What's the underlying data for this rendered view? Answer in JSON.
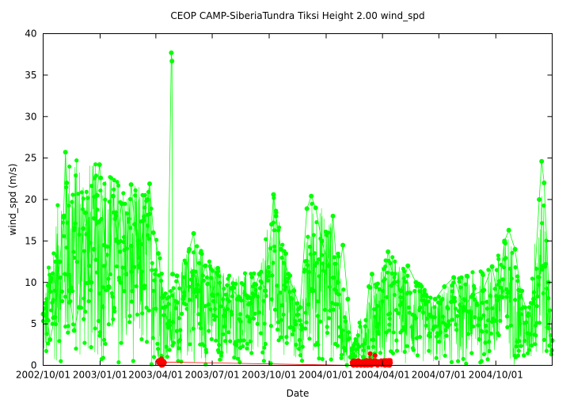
{
  "chart_data": {
    "type": "scatter",
    "title": "CEOP CAMP-SiberiaTundra Tiksi Height 2.00 wind_spd",
    "xlabel": "Date",
    "ylabel": "wind_spd (m/s)",
    "ylim": [
      0,
      40
    ],
    "xlim": [
      "2002-10-01",
      "2004-12-31"
    ],
    "yticks": [
      0,
      5,
      10,
      15,
      20,
      25,
      30,
      35,
      40
    ],
    "xticks": [
      {
        "date": "2002-10-01",
        "label": "2002/10/01"
      },
      {
        "date": "2003-01-01",
        "label": "2003/01/01"
      },
      {
        "date": "2003-04-01",
        "label": "2003/04/01"
      },
      {
        "date": "2003-07-01",
        "label": "2003/07/01"
      },
      {
        "date": "2003-10-01",
        "label": "2003/10/01"
      },
      {
        "date": "2004-01-01",
        "label": "2004/01/01"
      },
      {
        "date": "2004-04-01",
        "label": "2004/04/01"
      },
      {
        "date": "2004-07-01",
        "label": "2004/07/01"
      },
      {
        "date": "2004-10-01",
        "label": "2004/10/01"
      }
    ],
    "grid": false,
    "legend": "none",
    "series": [
      {
        "color": "#00ff00",
        "connected": true,
        "points": [
          [
            "2002-10-01",
            6.2
          ],
          [
            "2002-10-05",
            7.5
          ],
          [
            "2002-10-12",
            3.1
          ],
          [
            "2002-10-20",
            5.8
          ],
          [
            "2002-10-28",
            12.5
          ],
          [
            "2002-11-03",
            18.0
          ],
          [
            "2002-11-06",
            25.7
          ],
          [
            "2002-11-08",
            22.0
          ],
          [
            "2002-11-12",
            9.0
          ],
          [
            "2002-11-20",
            4.2
          ],
          [
            "2002-11-28",
            7.0
          ],
          [
            "2002-12-05",
            16.5
          ],
          [
            "2002-12-08",
            18.4
          ],
          [
            "2002-12-15",
            10.0
          ],
          [
            "2002-12-22",
            14.0
          ],
          [
            "2002-12-27",
            20.5
          ],
          [
            "2002-12-31",
            24.2
          ],
          [
            "2003-01-02",
            22.6
          ],
          [
            "2003-01-08",
            14.5
          ],
          [
            "2003-01-15",
            9.5
          ],
          [
            "2003-01-22",
            20.4
          ],
          [
            "2003-01-28",
            15.0
          ],
          [
            "2003-02-05",
            19.5
          ],
          [
            "2003-02-12",
            11.0
          ],
          [
            "2003-02-20",
            21.8
          ],
          [
            "2003-02-26",
            17.0
          ],
          [
            "2003-03-05",
            12.0
          ],
          [
            "2003-03-12",
            17.5
          ],
          [
            "2003-03-18",
            20.0
          ],
          [
            "2003-03-22",
            21.9
          ],
          [
            "2003-03-28",
            16.0
          ],
          [
            "2003-04-05",
            13.5
          ],
          [
            "2003-04-12",
            8.2
          ],
          [
            "2003-04-20",
            5.0
          ],
          [
            "2003-04-26",
            37.7
          ],
          [
            "2003-04-27",
            36.7
          ],
          [
            "2003-04-28",
            11.0
          ],
          [
            "2003-05-05",
            10.8
          ],
          [
            "2003-05-15",
            8.0
          ],
          [
            "2003-05-25",
            14.0
          ],
          [
            "2003-06-01",
            15.9
          ],
          [
            "2003-06-10",
            9.0
          ],
          [
            "2003-06-20",
            12.0
          ],
          [
            "2003-07-01",
            8.5
          ],
          [
            "2003-07-10",
            11.7
          ],
          [
            "2003-07-20",
            6.0
          ],
          [
            "2003-08-01",
            9.3
          ],
          [
            "2003-08-15",
            8.0
          ],
          [
            "2003-09-01",
            7.5
          ],
          [
            "2003-09-15",
            11.0
          ],
          [
            "2003-09-25",
            9.0
          ],
          [
            "2003-10-05",
            17.0
          ],
          [
            "2003-10-08",
            20.6
          ],
          [
            "2003-10-12",
            18.0
          ],
          [
            "2003-10-20",
            14.0
          ],
          [
            "2003-11-01",
            11.0
          ],
          [
            "2003-11-10",
            9.0
          ],
          [
            "2003-11-20",
            7.0
          ],
          [
            "2003-12-01",
            18.9
          ],
          [
            "2003-12-08",
            20.4
          ],
          [
            "2003-12-15",
            19.0
          ],
          [
            "2003-12-25",
            15.0
          ],
          [
            "2004-01-05",
            12.0
          ],
          [
            "2004-01-12",
            18.0
          ],
          [
            "2004-01-20",
            10.0
          ],
          [
            "2004-01-28",
            14.5
          ],
          [
            "2004-02-05",
            8.0
          ],
          [
            "2004-02-12",
            2.0
          ],
          [
            "2004-03-01",
            1.0
          ],
          [
            "2004-03-10",
            9.5
          ],
          [
            "2004-03-15",
            11.0
          ],
          [
            "2004-03-25",
            4.0
          ],
          [
            "2004-04-10",
            13.7
          ],
          [
            "2004-04-20",
            10.0
          ],
          [
            "2004-05-01",
            9.0
          ],
          [
            "2004-05-12",
            12.0
          ],
          [
            "2004-05-25",
            10.0
          ],
          [
            "2004-06-10",
            8.5
          ],
          [
            "2004-06-25",
            8.0
          ],
          [
            "2004-07-10",
            9.5
          ],
          [
            "2004-07-25",
            10.6
          ],
          [
            "2004-08-10",
            7.0
          ],
          [
            "2004-08-25",
            8.5
          ],
          [
            "2004-09-10",
            9.0
          ],
          [
            "2004-09-25",
            11.9
          ],
          [
            "2004-10-05",
            8.0
          ],
          [
            "2004-10-15",
            15.0
          ],
          [
            "2004-10-22",
            16.3
          ],
          [
            "2004-11-01",
            14.0
          ],
          [
            "2004-11-10",
            9.0
          ],
          [
            "2004-11-22",
            6.0
          ],
          [
            "2004-12-01",
            8.0
          ],
          [
            "2004-12-10",
            20.0
          ],
          [
            "2004-12-14",
            24.6
          ],
          [
            "2004-12-18",
            22.0
          ],
          [
            "2004-12-25",
            10.0
          ],
          [
            "2004-12-31",
            3.0
          ]
        ],
        "band": {
          "description": "dense daily observations between the lower and upper envelope",
          "upper": [
            [
              "2002-10-01",
              7.5
            ],
            [
              "2002-11-06",
              25.7
            ],
            [
              "2002-12-31",
              24.2
            ],
            [
              "2003-02-20",
              21.8
            ],
            [
              "2003-03-22",
              21.9
            ],
            [
              "2003-04-20",
              8.2
            ],
            [
              "2003-06-01",
              15.9
            ],
            [
              "2003-07-10",
              11.7
            ],
            [
              "2003-09-15",
              11.0
            ],
            [
              "2003-10-08",
              20.6
            ],
            [
              "2003-11-20",
              7.0
            ],
            [
              "2003-12-08",
              20.4
            ],
            [
              "2004-01-12",
              18.0
            ],
            [
              "2004-02-12",
              2.0
            ],
            [
              "2004-03-10",
              9.5
            ],
            [
              "2004-04-10",
              13.7
            ],
            [
              "2004-06-25",
              8.0
            ],
            [
              "2004-07-25",
              10.6
            ],
            [
              "2004-09-25",
              11.9
            ],
            [
              "2004-10-22",
              16.3
            ],
            [
              "2004-11-22",
              6.0
            ],
            [
              "2004-12-14",
              24.6
            ],
            [
              "2004-12-31",
              3.0
            ]
          ],
          "lower": 0
        }
      },
      {
        "color": "#ff0000",
        "connected": true,
        "points": [
          [
            "2003-04-06",
            0.3
          ],
          [
            "2003-04-08",
            0.5
          ],
          [
            "2003-04-10",
            0.8
          ],
          [
            "2003-04-12",
            0.2
          ],
          [
            "2003-04-14",
            0.4
          ],
          [
            "2004-02-14",
            0.0
          ],
          [
            "2004-02-20",
            0.0
          ],
          [
            "2004-02-26",
            0.0
          ],
          [
            "2004-03-03",
            0.0
          ],
          [
            "2004-03-08",
            0.0
          ],
          [
            "2004-03-12",
            1.4
          ],
          [
            "2004-03-14",
            0.0
          ],
          [
            "2004-03-20",
            1.2
          ],
          [
            "2004-03-24",
            0.0
          ],
          [
            "2004-04-01",
            0.5
          ],
          [
            "2004-04-05",
            0.0
          ],
          [
            "2004-04-08",
            0.3
          ],
          [
            "2004-04-12",
            0.0
          ]
        ]
      }
    ]
  }
}
